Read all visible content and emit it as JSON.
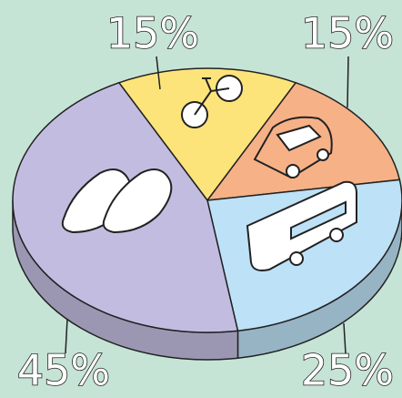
{
  "chart_data": {
    "type": "pie",
    "categories": [
      null,
      null,
      null,
      null
    ],
    "values": [
      15,
      15,
      25,
      45
    ],
    "value_labels": [
      "15%",
      "15%",
      "25%",
      "45%"
    ],
    "colors": [
      "#fde47a",
      "#f6b187",
      "#bde1f6",
      "#c2bde0"
    ]
  }
}
